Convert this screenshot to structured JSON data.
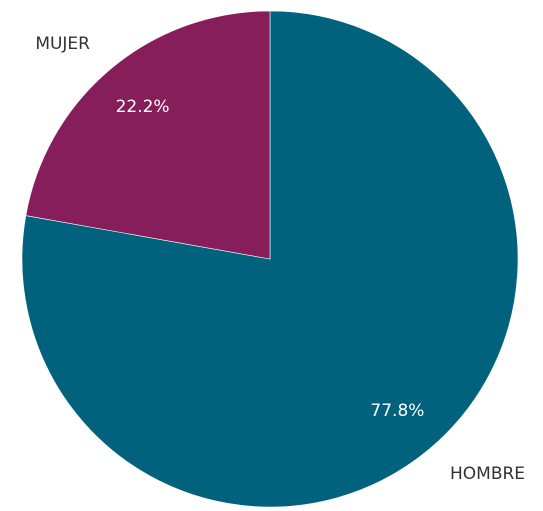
{
  "chart_data": {
    "type": "pie",
    "categories": [
      "HOMBRE",
      "MUJER"
    ],
    "values": [
      77.8,
      22.2
    ],
    "value_labels": [
      "77.8%",
      "22.2%"
    ],
    "colors": [
      "#00627d",
      "#861e5c"
    ]
  }
}
